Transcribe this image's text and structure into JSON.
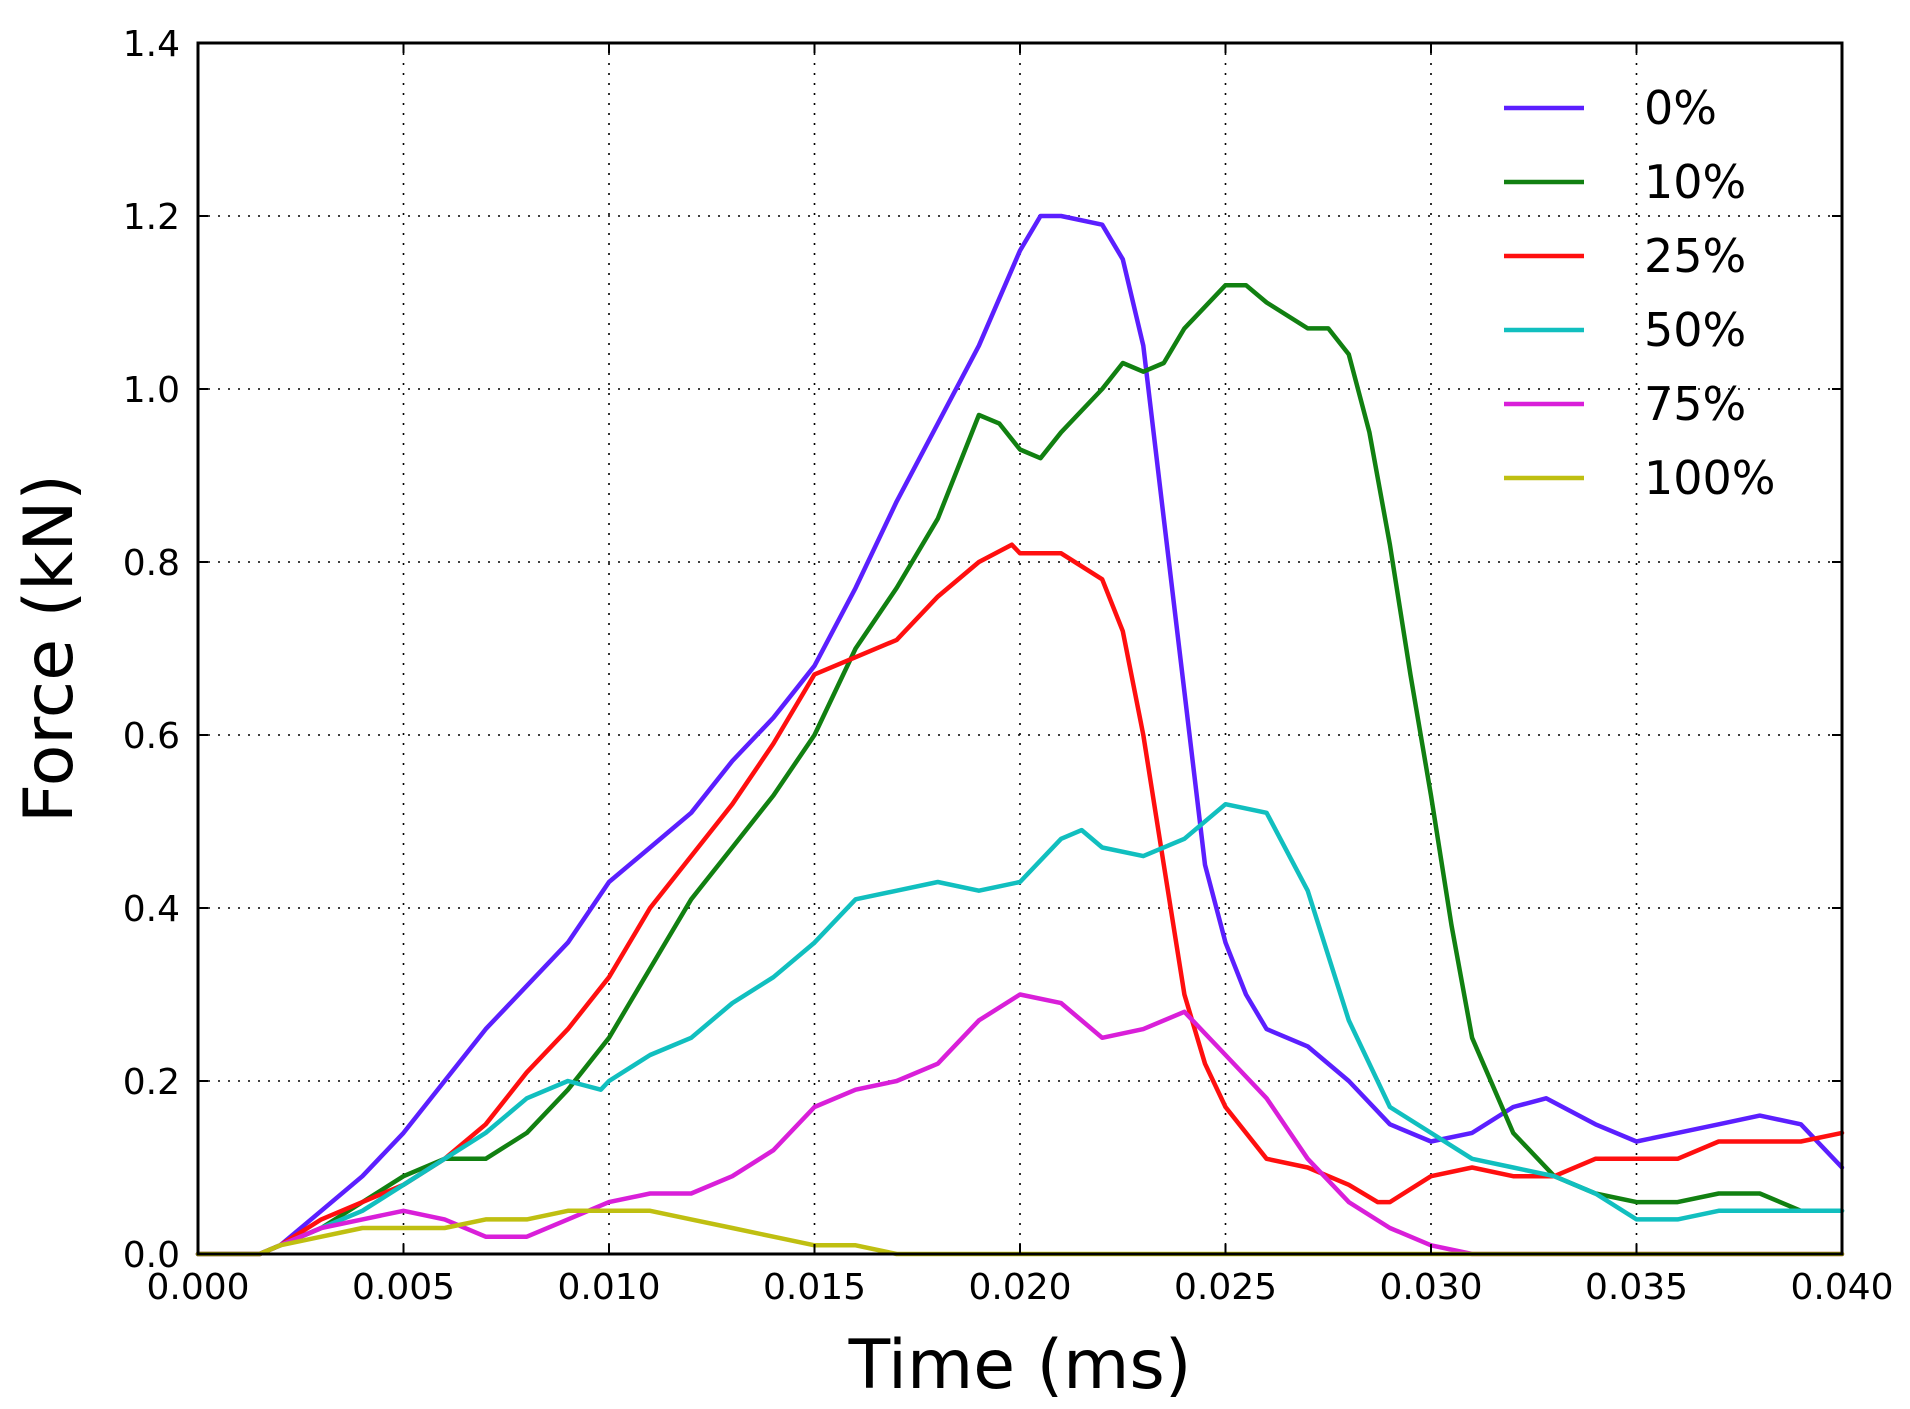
{
  "chart_data": {
    "type": "line",
    "xlabel": "Time (ms)",
    "ylabel": "Force (kN)",
    "xlim": [
      0.0,
      0.04
    ],
    "ylim": [
      0.0,
      1.4
    ],
    "x_ticks": [
      "0.000",
      "0.005",
      "0.010",
      "0.015",
      "0.020",
      "0.025",
      "0.030",
      "0.035",
      "0.040"
    ],
    "y_ticks": [
      "0.0",
      "0.2",
      "0.4",
      "0.6",
      "0.8",
      "1.0",
      "1.2",
      "1.4"
    ],
    "grid": true,
    "legend_position": "top-right",
    "series": [
      {
        "name": "0%",
        "color": "#5b1fff",
        "points": [
          [
            0,
            0
          ],
          [
            0.0015,
            0
          ],
          [
            0.002,
            0.01
          ],
          [
            0.003,
            0.05
          ],
          [
            0.004,
            0.09
          ],
          [
            0.005,
            0.14
          ],
          [
            0.006,
            0.2
          ],
          [
            0.007,
            0.26
          ],
          [
            0.008,
            0.31
          ],
          [
            0.009,
            0.36
          ],
          [
            0.01,
            0.43
          ],
          [
            0.011,
            0.47
          ],
          [
            0.012,
            0.51
          ],
          [
            0.013,
            0.57
          ],
          [
            0.014,
            0.62
          ],
          [
            0.015,
            0.68
          ],
          [
            0.016,
            0.77
          ],
          [
            0.017,
            0.87
          ],
          [
            0.018,
            0.96
          ],
          [
            0.019,
            1.05
          ],
          [
            0.02,
            1.16
          ],
          [
            0.0205,
            1.2
          ],
          [
            0.021,
            1.2
          ],
          [
            0.022,
            1.19
          ],
          [
            0.0225,
            1.15
          ],
          [
            0.023,
            1.05
          ],
          [
            0.0235,
            0.85
          ],
          [
            0.024,
            0.65
          ],
          [
            0.0245,
            0.45
          ],
          [
            0.025,
            0.36
          ],
          [
            0.0255,
            0.3
          ],
          [
            0.026,
            0.26
          ],
          [
            0.027,
            0.24
          ],
          [
            0.028,
            0.2
          ],
          [
            0.029,
            0.15
          ],
          [
            0.03,
            0.13
          ],
          [
            0.031,
            0.14
          ],
          [
            0.032,
            0.17
          ],
          [
            0.0328,
            0.18
          ],
          [
            0.034,
            0.15
          ],
          [
            0.035,
            0.13
          ],
          [
            0.036,
            0.14
          ],
          [
            0.037,
            0.15
          ],
          [
            0.038,
            0.16
          ],
          [
            0.039,
            0.15
          ],
          [
            0.04,
            0.1
          ]
        ]
      },
      {
        "name": "10%",
        "color": "#118011",
        "points": [
          [
            0,
            0
          ],
          [
            0.0015,
            0
          ],
          [
            0.002,
            0.01
          ],
          [
            0.003,
            0.03
          ],
          [
            0.004,
            0.06
          ],
          [
            0.005,
            0.09
          ],
          [
            0.006,
            0.11
          ],
          [
            0.007,
            0.11
          ],
          [
            0.008,
            0.14
          ],
          [
            0.009,
            0.19
          ],
          [
            0.01,
            0.25
          ],
          [
            0.011,
            0.33
          ],
          [
            0.012,
            0.41
          ],
          [
            0.013,
            0.47
          ],
          [
            0.014,
            0.53
          ],
          [
            0.015,
            0.6
          ],
          [
            0.016,
            0.7
          ],
          [
            0.017,
            0.77
          ],
          [
            0.018,
            0.85
          ],
          [
            0.019,
            0.97
          ],
          [
            0.0195,
            0.96
          ],
          [
            0.02,
            0.93
          ],
          [
            0.0205,
            0.92
          ],
          [
            0.021,
            0.95
          ],
          [
            0.022,
            1.0
          ],
          [
            0.0225,
            1.03
          ],
          [
            0.023,
            1.02
          ],
          [
            0.0235,
            1.03
          ],
          [
            0.024,
            1.07
          ],
          [
            0.025,
            1.12
          ],
          [
            0.0255,
            1.12
          ],
          [
            0.026,
            1.1
          ],
          [
            0.027,
            1.07
          ],
          [
            0.0275,
            1.07
          ],
          [
            0.028,
            1.04
          ],
          [
            0.0285,
            0.95
          ],
          [
            0.029,
            0.82
          ],
          [
            0.0295,
            0.67
          ],
          [
            0.03,
            0.53
          ],
          [
            0.0305,
            0.38
          ],
          [
            0.031,
            0.25
          ],
          [
            0.032,
            0.14
          ],
          [
            0.033,
            0.09
          ],
          [
            0.034,
            0.07
          ],
          [
            0.035,
            0.06
          ],
          [
            0.036,
            0.06
          ],
          [
            0.037,
            0.07
          ],
          [
            0.038,
            0.07
          ],
          [
            0.039,
            0.05
          ],
          [
            0.04,
            0.05
          ]
        ]
      },
      {
        "name": "25%",
        "color": "#ff0f0f",
        "points": [
          [
            0,
            0
          ],
          [
            0.0015,
            0
          ],
          [
            0.002,
            0.01
          ],
          [
            0.003,
            0.04
          ],
          [
            0.004,
            0.06
          ],
          [
            0.005,
            0.08
          ],
          [
            0.006,
            0.11
          ],
          [
            0.007,
            0.15
          ],
          [
            0.008,
            0.21
          ],
          [
            0.009,
            0.26
          ],
          [
            0.01,
            0.32
          ],
          [
            0.011,
            0.4
          ],
          [
            0.012,
            0.46
          ],
          [
            0.013,
            0.52
          ],
          [
            0.014,
            0.59
          ],
          [
            0.015,
            0.67
          ],
          [
            0.016,
            0.69
          ],
          [
            0.017,
            0.71
          ],
          [
            0.018,
            0.76
          ],
          [
            0.019,
            0.8
          ],
          [
            0.0198,
            0.82
          ],
          [
            0.02,
            0.81
          ],
          [
            0.021,
            0.81
          ],
          [
            0.022,
            0.78
          ],
          [
            0.0225,
            0.72
          ],
          [
            0.023,
            0.6
          ],
          [
            0.0235,
            0.45
          ],
          [
            0.024,
            0.3
          ],
          [
            0.0245,
            0.22
          ],
          [
            0.025,
            0.17
          ],
          [
            0.026,
            0.11
          ],
          [
            0.027,
            0.1
          ],
          [
            0.028,
            0.08
          ],
          [
            0.0287,
            0.06
          ],
          [
            0.029,
            0.06
          ],
          [
            0.03,
            0.09
          ],
          [
            0.031,
            0.1
          ],
          [
            0.032,
            0.09
          ],
          [
            0.033,
            0.09
          ],
          [
            0.034,
            0.11
          ],
          [
            0.035,
            0.11
          ],
          [
            0.036,
            0.11
          ],
          [
            0.037,
            0.13
          ],
          [
            0.038,
            0.13
          ],
          [
            0.039,
            0.13
          ],
          [
            0.04,
            0.14
          ]
        ]
      },
      {
        "name": "50%",
        "color": "#11bfbf",
        "points": [
          [
            0,
            0
          ],
          [
            0.0015,
            0
          ],
          [
            0.002,
            0.01
          ],
          [
            0.003,
            0.03
          ],
          [
            0.004,
            0.05
          ],
          [
            0.005,
            0.08
          ],
          [
            0.006,
            0.11
          ],
          [
            0.007,
            0.14
          ],
          [
            0.008,
            0.18
          ],
          [
            0.009,
            0.2
          ],
          [
            0.0098,
            0.19
          ],
          [
            0.01,
            0.2
          ],
          [
            0.011,
            0.23
          ],
          [
            0.012,
            0.25
          ],
          [
            0.013,
            0.29
          ],
          [
            0.014,
            0.32
          ],
          [
            0.015,
            0.36
          ],
          [
            0.016,
            0.41
          ],
          [
            0.017,
            0.42
          ],
          [
            0.018,
            0.43
          ],
          [
            0.019,
            0.42
          ],
          [
            0.02,
            0.43
          ],
          [
            0.021,
            0.48
          ],
          [
            0.0215,
            0.49
          ],
          [
            0.022,
            0.47
          ],
          [
            0.023,
            0.46
          ],
          [
            0.024,
            0.48
          ],
          [
            0.025,
            0.52
          ],
          [
            0.026,
            0.51
          ],
          [
            0.027,
            0.42
          ],
          [
            0.028,
            0.27
          ],
          [
            0.029,
            0.17
          ],
          [
            0.03,
            0.14
          ],
          [
            0.031,
            0.11
          ],
          [
            0.032,
            0.1
          ],
          [
            0.033,
            0.09
          ],
          [
            0.034,
            0.07
          ],
          [
            0.035,
            0.04
          ],
          [
            0.036,
            0.04
          ],
          [
            0.037,
            0.05
          ],
          [
            0.038,
            0.05
          ],
          [
            0.039,
            0.05
          ],
          [
            0.04,
            0.05
          ]
        ]
      },
      {
        "name": "75%",
        "color": "#d91fd9",
        "points": [
          [
            0,
            0
          ],
          [
            0.0015,
            0
          ],
          [
            0.002,
            0.01
          ],
          [
            0.003,
            0.03
          ],
          [
            0.004,
            0.04
          ],
          [
            0.005,
            0.05
          ],
          [
            0.006,
            0.04
          ],
          [
            0.007,
            0.02
          ],
          [
            0.008,
            0.02
          ],
          [
            0.009,
            0.04
          ],
          [
            0.01,
            0.06
          ],
          [
            0.011,
            0.07
          ],
          [
            0.012,
            0.07
          ],
          [
            0.013,
            0.09
          ],
          [
            0.014,
            0.12
          ],
          [
            0.015,
            0.17
          ],
          [
            0.016,
            0.19
          ],
          [
            0.017,
            0.2
          ],
          [
            0.018,
            0.22
          ],
          [
            0.019,
            0.27
          ],
          [
            0.02,
            0.3
          ],
          [
            0.021,
            0.29
          ],
          [
            0.022,
            0.25
          ],
          [
            0.023,
            0.26
          ],
          [
            0.024,
            0.28
          ],
          [
            0.025,
            0.23
          ],
          [
            0.026,
            0.18
          ],
          [
            0.027,
            0.11
          ],
          [
            0.028,
            0.06
          ],
          [
            0.029,
            0.03
          ],
          [
            0.03,
            0.01
          ],
          [
            0.031,
            0
          ],
          [
            0.035,
            0
          ],
          [
            0.04,
            0
          ]
        ]
      },
      {
        "name": "100%",
        "color": "#bfbf11",
        "points": [
          [
            0,
            0
          ],
          [
            0.0015,
            0
          ],
          [
            0.002,
            0.01
          ],
          [
            0.003,
            0.02
          ],
          [
            0.004,
            0.03
          ],
          [
            0.005,
            0.03
          ],
          [
            0.006,
            0.03
          ],
          [
            0.007,
            0.04
          ],
          [
            0.008,
            0.04
          ],
          [
            0.009,
            0.05
          ],
          [
            0.01,
            0.05
          ],
          [
            0.011,
            0.05
          ],
          [
            0.012,
            0.04
          ],
          [
            0.013,
            0.03
          ],
          [
            0.014,
            0.02
          ],
          [
            0.015,
            0.01
          ],
          [
            0.016,
            0.01
          ],
          [
            0.017,
            0
          ],
          [
            0.02,
            0
          ],
          [
            0.03,
            0
          ],
          [
            0.04,
            0
          ]
        ]
      }
    ]
  }
}
